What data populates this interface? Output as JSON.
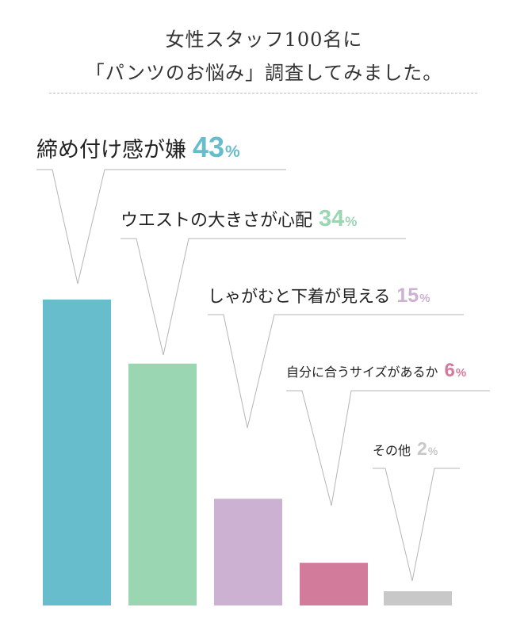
{
  "header": {
    "title_line1": "女性スタッフ100名に",
    "title_line2": "「パンツのお悩み」調査してみました。"
  },
  "chart_data": {
    "type": "bar",
    "title": "",
    "xlabel": "",
    "ylabel": "",
    "ylim": [
      0,
      43
    ],
    "grid": false,
    "categories": [
      "締め付け感が嫌",
      "ウエストの大きさが心配",
      "しゃがむと下着が見える",
      "自分に合うサイズがあるか",
      "その他"
    ],
    "values": [
      43,
      34,
      15,
      6,
      2
    ],
    "value_labels": [
      "43",
      "34",
      "15",
      "6",
      "2"
    ],
    "unit": "%",
    "colors": [
      "#68bdcc",
      "#9ad6b2",
      "#cdb1d3",
      "#d27b9b",
      "#c8c8c8"
    ]
  }
}
